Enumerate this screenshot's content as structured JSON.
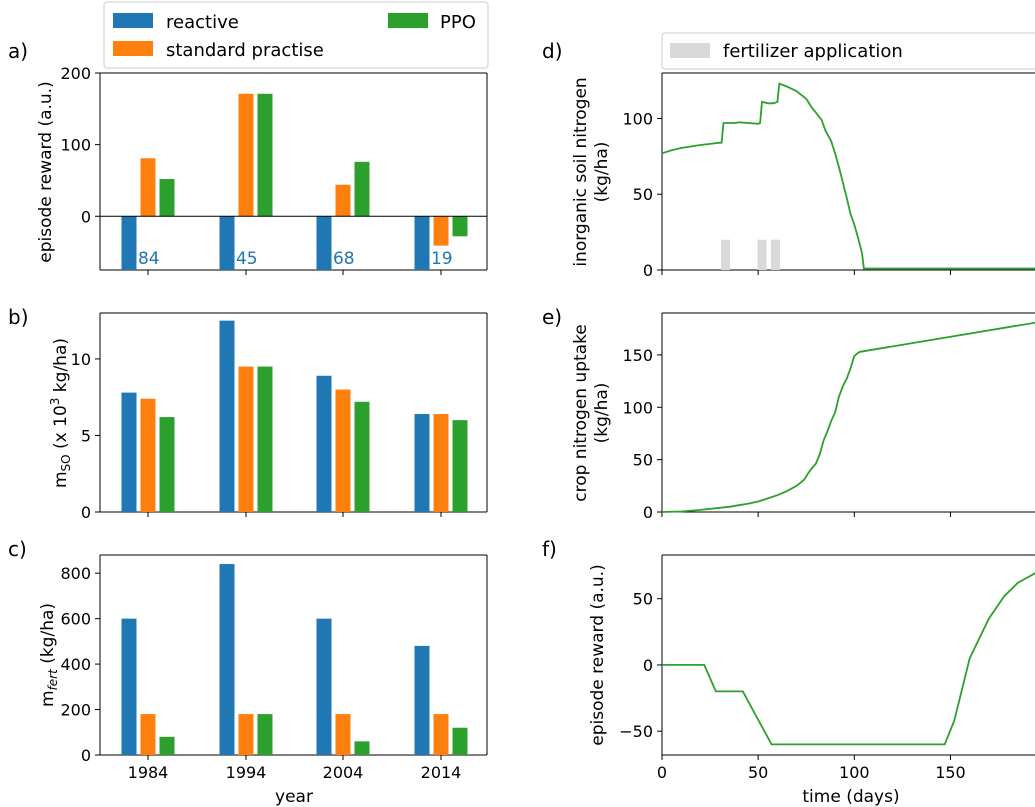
{
  "legend_left": {
    "entries": [
      {
        "label": "reactive",
        "color": "#1f77b4"
      },
      {
        "label": "standard practise",
        "color": "#ff7f0e"
      },
      {
        "label": "PPO",
        "color": "#2ca02c"
      }
    ]
  },
  "legend_right": {
    "entries": [
      {
        "label": "fertilizer application",
        "color": "#d9d9d9"
      }
    ]
  },
  "chart_data": [
    {
      "id": "a",
      "panel_label": "a)",
      "type": "bar",
      "categories": [
        "1984",
        "1994",
        "2004",
        "2014"
      ],
      "series": [
        {
          "name": "reactive",
          "color": "#1f77b4",
          "values": [
            -284,
            -145,
            -268,
            -319
          ]
        },
        {
          "name": "standard practise",
          "color": "#ff7f0e",
          "values": [
            81,
            171,
            44,
            -41
          ]
        },
        {
          "name": "PPO",
          "color": "#2ca02c",
          "values": [
            52,
            171,
            76,
            -28
          ]
        }
      ],
      "ylabel": "episode reward (a.u.)",
      "ylim": [
        -75,
        200
      ],
      "yticks": [
        0,
        100,
        200
      ],
      "clipped_labels": [
        "-284",
        "-145",
        "-268",
        "-319"
      ],
      "xlabel": ""
    },
    {
      "id": "b",
      "panel_label": "b)",
      "type": "bar",
      "categories": [
        "1984",
        "1994",
        "2004",
        "2014"
      ],
      "series": [
        {
          "name": "reactive",
          "color": "#1f77b4",
          "values": [
            7.8,
            12.5,
            8.9,
            6.4
          ]
        },
        {
          "name": "standard practise",
          "color": "#ff7f0e",
          "values": [
            7.4,
            9.5,
            8.0,
            6.4
          ]
        },
        {
          "name": "PPO",
          "color": "#2ca02c",
          "values": [
            6.2,
            9.5,
            7.2,
            6.0
          ]
        }
      ],
      "ylabel_main": "m",
      "ylabel_sub": "SO",
      "ylabel_rest": " (x 10",
      "ylabel_sup": "3",
      "ylabel_end": " kg/ha)",
      "ylim": [
        0,
        13
      ],
      "yticks": [
        0,
        5,
        10
      ],
      "xlabel": ""
    },
    {
      "id": "c",
      "panel_label": "c)",
      "type": "bar",
      "categories": [
        "1984",
        "1994",
        "2004",
        "2014"
      ],
      "series": [
        {
          "name": "reactive",
          "color": "#1f77b4",
          "values": [
            600,
            840,
            600,
            480
          ]
        },
        {
          "name": "standard practise",
          "color": "#ff7f0e",
          "values": [
            180,
            180,
            180,
            180
          ]
        },
        {
          "name": "PPO",
          "color": "#2ca02c",
          "values": [
            80,
            180,
            60,
            120
          ]
        }
      ],
      "ylabel_main": "m",
      "ylabel_sub": "fert",
      "ylabel_end": " (kg/ha)",
      "ylim": [
        0,
        880
      ],
      "yticks": [
        0,
        200,
        400,
        600,
        800
      ],
      "xlabel": "year"
    },
    {
      "id": "d",
      "panel_label": "d)",
      "type": "line",
      "ylabel": "inorganic soil nitrogen",
      "ylabel2": "(kg/ha)",
      "ylim": [
        0,
        130
      ],
      "yticks": [
        0,
        50,
        100
      ],
      "xlim": [
        0,
        195
      ],
      "xticks": [
        0,
        50,
        100,
        150
      ],
      "color": "#2ca02c",
      "x": [
        0,
        5,
        10,
        15,
        20,
        25,
        30,
        31,
        32,
        38,
        40,
        45,
        50,
        51,
        52,
        55,
        57,
        58,
        60,
        61,
        65,
        70,
        75,
        78,
        80,
        83,
        85,
        88,
        90,
        92,
        94,
        96,
        98,
        100,
        102,
        104,
        105,
        110,
        150,
        195
      ],
      "y": [
        77,
        79,
        80.5,
        81.5,
        82.5,
        83.2,
        84,
        84,
        97,
        97,
        97.5,
        97,
        96.5,
        97,
        111,
        110,
        110,
        110,
        111,
        123,
        121,
        118,
        113,
        107,
        104,
        99,
        92,
        85,
        77,
        68,
        58,
        48,
        37,
        30,
        21,
        11,
        1,
        1,
        1,
        1
      ],
      "markers": [
        {
          "x": 33,
          "label": "fertilizer application"
        },
        {
          "x": 52,
          "label": "fertilizer application"
        },
        {
          "x": 59,
          "label": "fertilizer application"
        }
      ],
      "marker_height": 20
    },
    {
      "id": "e",
      "panel_label": "e)",
      "type": "line",
      "ylabel": "crop nitrogen uptake",
      "ylabel2": "(kg/ha)",
      "ylim": [
        0,
        190
      ],
      "yticks": [
        0,
        50,
        100,
        150
      ],
      "xlim": [
        0,
        195
      ],
      "xticks": [
        0,
        50,
        100,
        150
      ],
      "color": "#2ca02c",
      "x": [
        0,
        10,
        20,
        30,
        35,
        40,
        45,
        50,
        55,
        60,
        65,
        70,
        72,
        74,
        76,
        78,
        80,
        82,
        84,
        86,
        88,
        90,
        92,
        94,
        96,
        98,
        100,
        102,
        103,
        195
      ],
      "y": [
        0,
        0.5,
        2,
        4,
        5,
        6.5,
        8,
        10,
        13,
        16,
        20,
        25,
        28,
        31,
        37,
        42,
        46,
        55,
        68,
        77,
        87,
        95,
        110,
        120,
        127,
        137,
        149,
        152,
        153,
        181
      ]
    },
    {
      "id": "f",
      "panel_label": "f)",
      "type": "line",
      "ylabel": "episode reward (a.u.)",
      "xlabel": "time (days)",
      "ylim": [
        -68,
        83
      ],
      "yticks": [
        -50,
        0,
        50
      ],
      "xlim": [
        0,
        195
      ],
      "xticks": [
        0,
        50,
        100,
        150
      ],
      "color": "#2ca02c",
      "x": [
        0,
        22,
        28,
        42,
        57,
        100,
        140,
        147,
        152,
        160,
        165,
        170,
        178,
        185,
        190,
        195
      ],
      "y": [
        0,
        0,
        -20,
        -20,
        -60,
        -60,
        -60,
        -60,
        -42,
        5,
        20,
        35,
        52,
        62,
        66,
        70
      ]
    }
  ]
}
